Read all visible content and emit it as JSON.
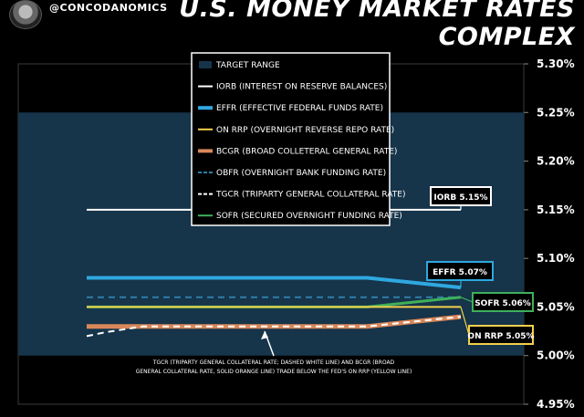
{
  "header": {
    "handle": "@CONCODANOMICS",
    "title": "U.S. MONEY MARKET RATES COMPLEX"
  },
  "chart_data": {
    "type": "line",
    "title": "U.S. MONEY MARKET RATES COMPLEX",
    "ylim": [
      4.95,
      5.3
    ],
    "y_ticks": [
      "5.30%",
      "5.25%",
      "5.20%",
      "5.15%",
      "5.10%",
      "5.05%",
      "5.00%",
      "4.95%"
    ],
    "x": [
      0,
      1,
      2,
      3,
      4,
      5,
      6,
      7,
      8,
      9,
      10,
      11,
      12,
      13,
      14,
      15,
      16,
      17,
      18,
      19,
      20
    ],
    "target_range": [
      5.0,
      5.25
    ],
    "legend": [
      {
        "label": "TARGET RANGE",
        "color": "#16344a",
        "style": "box"
      },
      {
        "label": "IORB (INTEREST ON RESERVE BALANCES)",
        "color": "#ffffff",
        "style": "solid"
      },
      {
        "label": "EFFR (EFFECTIVE FEDERAL FUNDS RATE)",
        "color": "#2fa8e0",
        "style": "thick"
      },
      {
        "label": "ON RRP (OVERNIGHT REVERSE REPO RATE)",
        "color": "#f3d04a",
        "style": "solid"
      },
      {
        "label": "BCGR (BROAD COLLETERAL GENERAL RATE)",
        "color": "#d9885a",
        "style": "thick"
      },
      {
        "label": "OBFR (OVERNIGHT BANK FUNDING RATE)",
        "color": "#2f7fa8",
        "style": "dashed"
      },
      {
        "label": "TGCR (TRIPARTY GENERAL COLLATERAL RATE)",
        "color": "#ffffff",
        "style": "dashed"
      },
      {
        "label": "SOFR (SECURED OVERNIGHT FUNDING RATE)",
        "color": "#3fb05a",
        "style": "solid"
      }
    ],
    "series": [
      {
        "name": "IORB",
        "color": "#ffffff",
        "width": 2,
        "dash": "",
        "values": [
          5.15,
          5.15,
          5.15,
          5.15,
          5.15,
          5.15,
          5.15,
          5.15,
          5.15,
          5.15,
          5.15,
          5.15,
          5.15,
          5.15,
          5.15,
          5.15,
          5.15,
          5.15,
          5.15,
          5.15,
          5.15
        ]
      },
      {
        "name": "EFFR",
        "color": "#2fa8e0",
        "width": 4,
        "dash": "",
        "values": [
          5.08,
          5.08,
          5.08,
          5.08,
          5.08,
          5.08,
          5.08,
          5.08,
          5.08,
          5.08,
          5.08,
          5.08,
          5.08,
          5.08,
          5.08,
          5.08,
          5.078,
          5.076,
          5.074,
          5.072,
          5.07
        ]
      },
      {
        "name": "OBFR",
        "color": "#2f7fa8",
        "width": 2,
        "dash": "7,5",
        "values": [
          5.06,
          5.06,
          5.06,
          5.06,
          5.06,
          5.06,
          5.06,
          5.06,
          5.06,
          5.06,
          5.06,
          5.06,
          5.06,
          5.06,
          5.06,
          5.06,
          5.06,
          5.06,
          5.06,
          5.06,
          5.06
        ]
      },
      {
        "name": "SOFR",
        "color": "#3fb05a",
        "width": 3,
        "dash": "",
        "values": [
          5.05,
          5.05,
          5.05,
          5.05,
          5.05,
          5.05,
          5.05,
          5.05,
          5.05,
          5.05,
          5.05,
          5.05,
          5.05,
          5.05,
          5.05,
          5.05,
          5.052,
          5.054,
          5.056,
          5.058,
          5.06
        ]
      },
      {
        "name": "ON RRP",
        "color": "#f3d04a",
        "width": 2,
        "dash": "",
        "values": [
          5.05,
          5.05,
          5.05,
          5.05,
          5.05,
          5.05,
          5.05,
          5.05,
          5.05,
          5.05,
          5.05,
          5.05,
          5.05,
          5.05,
          5.05,
          5.05,
          5.05,
          5.05,
          5.05,
          5.05,
          5.05
        ]
      },
      {
        "name": "BCGR",
        "color": "#d9885a",
        "width": 5,
        "dash": "",
        "values": [
          5.03,
          5.03,
          5.03,
          5.03,
          5.03,
          5.03,
          5.03,
          5.03,
          5.03,
          5.03,
          5.03,
          5.03,
          5.03,
          5.03,
          5.03,
          5.03,
          5.032,
          5.034,
          5.036,
          5.038,
          5.04
        ]
      },
      {
        "name": "TGCR",
        "color": "#ffffff",
        "width": 2,
        "dash": "7,5",
        "values": [
          5.02,
          5.024,
          5.027,
          5.03,
          5.03,
          5.03,
          5.03,
          5.03,
          5.03,
          5.03,
          5.03,
          5.03,
          5.03,
          5.03,
          5.03,
          5.03,
          5.032,
          5.034,
          5.036,
          5.038,
          5.04
        ]
      }
    ],
    "labels": [
      {
        "text": "IORB 5.15%",
        "bg": "#000000",
        "border": "#ffffff"
      },
      {
        "text": "EFFR 5.07%",
        "bg": "#000000",
        "border": "#2fa8e0"
      },
      {
        "text": "SOFR 5.06%",
        "bg": "#000000",
        "border": "#3fb05a"
      },
      {
        "text": "ON RRP 5.05%",
        "bg": "#000000",
        "border": "#f3d04a"
      }
    ],
    "annotation": [
      "TGCR (TRIPARTY GENERAL COLLATERAL RATE; DASHED WHITE LINE) AND BCGR (BROAD",
      "GENERAL COLLATERAL RATE, SOLID ORANGE LINE) TRADE BELOW THE FED'S ON RRP (YELLOW LINE)"
    ]
  }
}
